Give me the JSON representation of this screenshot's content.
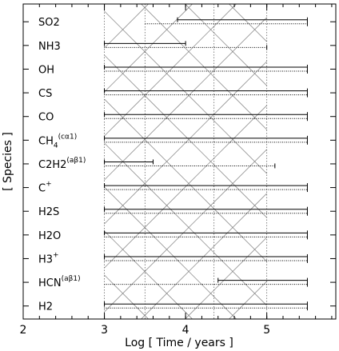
{
  "chart_data": {
    "type": "timeline",
    "xlabel": "Log [ Time / years ]",
    "ylabel": "[ Species ]",
    "xlim": [
      2,
      5.85
    ],
    "x_ticks": [
      "2",
      "3",
      "4",
      "5"
    ],
    "x_tick_values": [
      2,
      3,
      4,
      5
    ],
    "x_minor_step": 0.2,
    "hatch_boundaries": [
      3,
      3.5,
      4.35,
      5
    ],
    "species": [
      {
        "name": "SO2",
        "sup": "",
        "solid": [
          3.9,
          5.5
        ],
        "dotted": [
          3.5,
          5.5
        ]
      },
      {
        "name": "NH3",
        "sup": "",
        "solid": [
          3,
          4.0
        ],
        "dotted": [
          3,
          5.0
        ]
      },
      {
        "name": "OH",
        "sup": "",
        "solid": [
          3,
          5.5
        ],
        "dotted": [
          3,
          5.5
        ]
      },
      {
        "name": "CS",
        "sup": "",
        "solid": [
          3,
          5.5
        ],
        "dotted": [
          3,
          5.5
        ]
      },
      {
        "name": "CO",
        "sup": "",
        "solid": [
          3,
          5.5
        ],
        "dotted": [
          3,
          5.5
        ]
      },
      {
        "name": "CH",
        "sub": "4",
        "sup": "(cα1)",
        "solid": [
          3,
          5.5
        ],
        "dotted": [
          3,
          5.5
        ]
      },
      {
        "name": "C2H2",
        "sup": "(aβ1)",
        "solid": [
          3,
          3.6
        ],
        "dotted": [
          3,
          5.1
        ]
      },
      {
        "name": "C",
        "sup": "+",
        "solid": [
          3,
          5.5
        ],
        "dotted": [
          3,
          5.5
        ]
      },
      {
        "name": "H2S",
        "sup": "",
        "solid": [
          3,
          5.5
        ],
        "dotted": [
          3,
          5.5
        ]
      },
      {
        "name": "H2O",
        "sup": "",
        "solid": [
          3,
          5.5
        ],
        "dotted": [
          3,
          5.5
        ]
      },
      {
        "name": "H3",
        "sup": "+",
        "solid": [
          3,
          5.5
        ],
        "dotted": [
          3,
          5.5
        ]
      },
      {
        "name": "HCN",
        "sup": "(aβ1)",
        "solid": [
          4.4,
          5.5
        ],
        "dotted": [
          3,
          5.5
        ]
      },
      {
        "name": "H2",
        "sup": "",
        "solid": [
          3,
          5.5
        ],
        "dotted": [
          3,
          5.5
        ]
      }
    ]
  }
}
